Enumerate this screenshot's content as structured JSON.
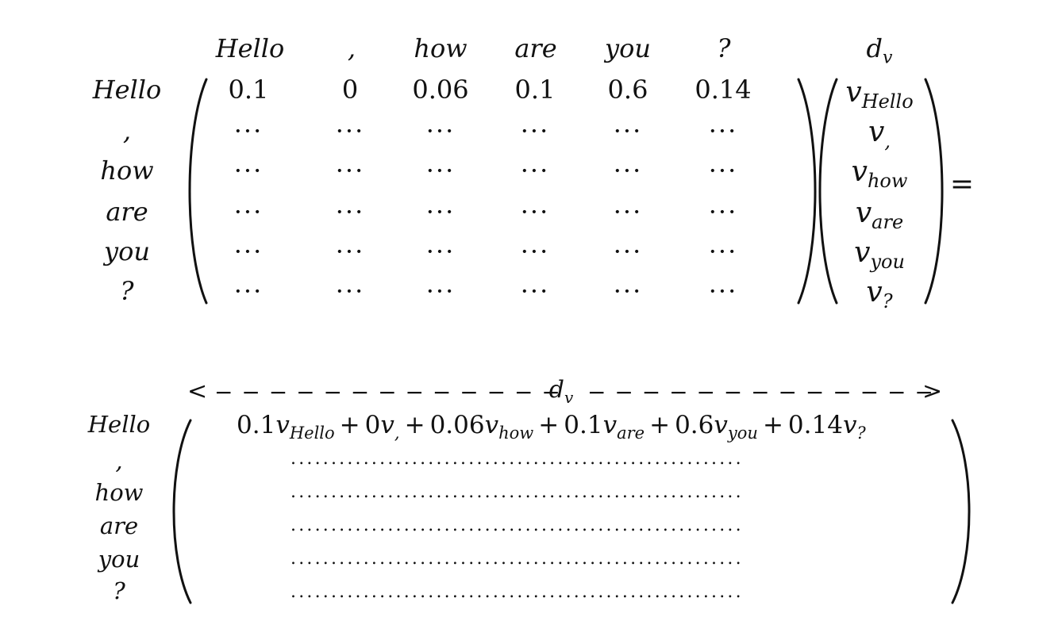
{
  "tokens": [
    "Hello",
    ",",
    "how",
    "are",
    "you",
    "?"
  ],
  "top": {
    "dim_label": "d",
    "dim_sub": "v",
    "row0_values": [
      "0.1",
      "0",
      "0.06",
      "0.1",
      "0.6",
      "0.14"
    ],
    "ellipsis": "···",
    "v_symbol": "v",
    "v_subs": [
      "Hello",
      ",",
      "how",
      "are",
      "you",
      "?"
    ],
    "equals": "="
  },
  "bottom": {
    "arrow_left": "<",
    "arrow_right": ">",
    "dashes_left": "− − − − − − − − − − − − −",
    "dashes_right": "− − − − − − − − − − − − −",
    "dim_label": "d",
    "dim_sub": "v",
    "terms": [
      {
        "coef": "0.1",
        "sub": "Hello",
        "op": ""
      },
      {
        "coef": "0",
        "sub": ",",
        "op": "+"
      },
      {
        "coef": "0.06",
        "sub": "how",
        "op": "+"
      },
      {
        "coef": "0.1",
        "sub": "are",
        "op": "+"
      },
      {
        "coef": "0.6",
        "sub": "you",
        "op": "+"
      },
      {
        "coef": "0.14",
        "sub": "?",
        "op": "+"
      }
    ],
    "v_symbol": "v",
    "dotted_row": "........................................................"
  }
}
